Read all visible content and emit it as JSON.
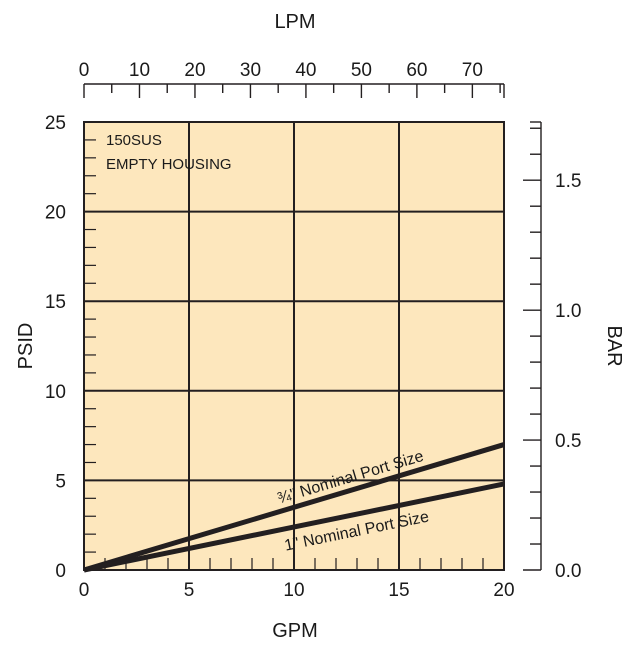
{
  "chart_data": {
    "type": "line",
    "title": "",
    "annotations": [
      "150SUS",
      "EMPTY HOUSING"
    ],
    "xlabel": "GPM",
    "ylabel": "PSID",
    "x2label": "LPM",
    "y2label": "BAR",
    "xlim": [
      0,
      20
    ],
    "ylim": [
      0,
      25
    ],
    "x2lim": [
      0,
      75.7
    ],
    "y2lim": [
      0,
      1.724
    ],
    "x_ticks": [
      "0",
      "5",
      "10",
      "15",
      "20"
    ],
    "y_ticks": [
      "0",
      "5",
      "10",
      "15",
      "20",
      "25"
    ],
    "x2_ticks": [
      "0",
      "10",
      "20",
      "30",
      "40",
      "50",
      "60",
      "70"
    ],
    "y2_ticks": [
      "0.0",
      "0.5",
      "1.0",
      "1.5"
    ],
    "grid": true,
    "background_color": "#fde7bd",
    "line_color": "#231f20",
    "series": [
      {
        "name": "¾\" Nominal Port Size",
        "x": [
          0,
          20
        ],
        "y": [
          0,
          7.0
        ]
      },
      {
        "name": "1\" Nominal Port Size",
        "x": [
          0,
          20
        ],
        "y": [
          0,
          4.8
        ]
      }
    ]
  }
}
